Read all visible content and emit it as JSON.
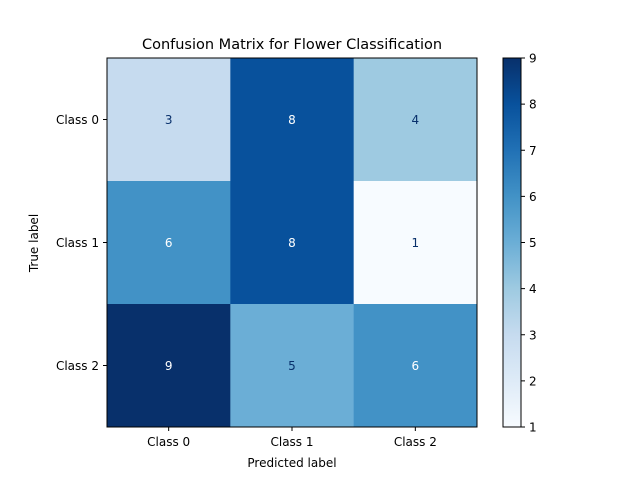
{
  "chart_data": {
    "type": "heatmap",
    "title": "Confusion Matrix for Flower Classification",
    "xlabel": "Predicted label",
    "ylabel": "True label",
    "x_categories": [
      "Class 0",
      "Class 1",
      "Class 2"
    ],
    "y_categories": [
      "Class 0",
      "Class 1",
      "Class 2"
    ],
    "values": [
      [
        3,
        8,
        4
      ],
      [
        6,
        8,
        1
      ],
      [
        9,
        5,
        6
      ]
    ],
    "colormap": "Blues",
    "color_range": [
      1,
      9
    ],
    "colorbar_ticks": [
      "1",
      "2",
      "3",
      "4",
      "5",
      "6",
      "7",
      "8",
      "9"
    ],
    "text_colors": {
      "dark_cell": "#ffffff",
      "light_cell": "#08306b"
    }
  }
}
